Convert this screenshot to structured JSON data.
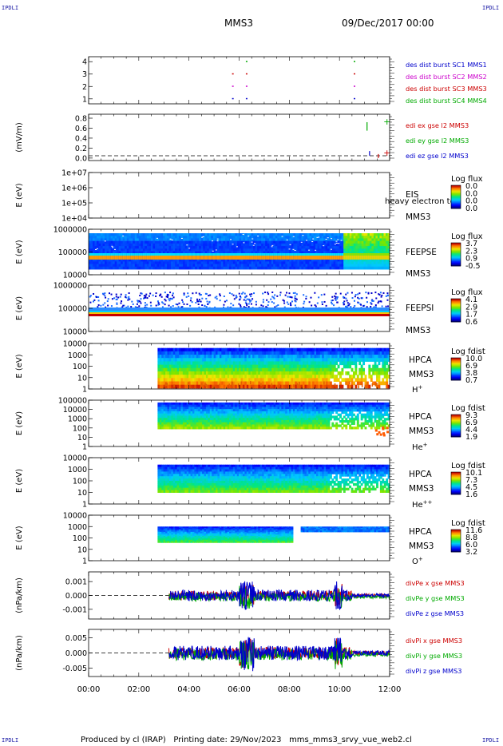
{
  "header": {
    "corner_label": "IPDLI",
    "spacecraft": "MMS3",
    "date_time": "09/Dec/2017 00:00"
  },
  "footer": {
    "produced_by": "Produced by cl (IRAP)",
    "printing_date": "Printing date: 29/Nov/2023",
    "script_name": "mms_mms3_srvy_vue_web2.cl"
  },
  "chart_data": {
    "type": "spectrogram-stack",
    "x_axis": {
      "range": [
        "00:00",
        "12:00"
      ],
      "ticks": [
        "00:00",
        "02:00",
        "04:00",
        "06:00",
        "08:00",
        "10:00",
        "12:00"
      ]
    },
    "panels": [
      {
        "id": "des-burst",
        "type": "scatter",
        "ylabel": "",
        "yticks": [
          "1",
          "2",
          "3",
          "4"
        ],
        "ylim": [
          0.6,
          4.4
        ],
        "legend": [
          {
            "text": "des dist burst SC1 MMS1",
            "color": "#0000cc"
          },
          {
            "text": "des dist burst SC2 MMS2",
            "color": "#cc00cc"
          },
          {
            "text": "des dist burst SC3 MMS3",
            "color": "#cc0000"
          },
          {
            "text": "des dist burst SC4 MMS4",
            "color": "#00aa00"
          }
        ],
        "points": [
          {
            "x": 5.75,
            "y": 1,
            "s": 0
          },
          {
            "x": 6.3,
            "y": 1,
            "s": 0
          },
          {
            "x": 10.6,
            "y": 1,
            "s": 0
          },
          {
            "x": 5.75,
            "y": 2,
            "s": 1
          },
          {
            "x": 6.3,
            "y": 2,
            "s": 1
          },
          {
            "x": 10.6,
            "y": 2,
            "s": 1
          },
          {
            "x": 5.75,
            "y": 3,
            "s": 2
          },
          {
            "x": 6.3,
            "y": 3,
            "s": 2
          },
          {
            "x": 10.6,
            "y": 3,
            "s": 2
          },
          {
            "x": 6.3,
            "y": 4,
            "s": 3
          },
          {
            "x": 10.6,
            "y": 4,
            "s": 3
          }
        ]
      },
      {
        "id": "edi",
        "type": "line",
        "ylabel": "(mV/m)",
        "yticks": [
          "0.0",
          "0.2",
          "0.4",
          "0.6",
          "0.8"
        ],
        "ylim": [
          -0.05,
          0.88
        ],
        "legend": [
          {
            "text": "edi ex gse l2 MMS3",
            "color": "#cc0000"
          },
          {
            "text": "edi ey gse l2 MMS3",
            "color": "#00aa00"
          },
          {
            "text": "edi ez gse l2 MMS3",
            "color": "#0000cc"
          }
        ],
        "series": [
          {
            "name": "ex",
            "x": [
              11.55,
              11.55
            ],
            "y": [
              0.0,
              0.08
            ]
          },
          {
            "name": "ey",
            "x": [
              11.1,
              11.1,
              11.1,
              11.1
            ],
            "y": [
              0.55,
              0.72,
              0.62,
              0.7
            ]
          },
          {
            "name": "ez",
            "x": [
              11.2,
              11.2
            ],
            "y": [
              0.05,
              0.14
            ]
          }
        ]
      },
      {
        "id": "eis",
        "type": "heatmap",
        "ylabel": "E (eV)",
        "yticks": [
          "1e+04",
          "1e+05",
          "1e+06",
          "1e+07"
        ],
        "label_lines": [
          "EIS",
          "heavy electron to",
          "MMS3"
        ],
        "colorbar": {
          "title": "Log flux",
          "ticks": [
            "0.0",
            "0.0",
            "0.0",
            "0.0"
          ]
        }
      },
      {
        "id": "feeps-e",
        "type": "heatmap",
        "ylabel": "E (eV)",
        "yticks": [
          "10000",
          "100000",
          "1000000"
        ],
        "label_lines": [
          "FEEPSE",
          "MMS3"
        ],
        "colorbar": {
          "title": "Log flux",
          "ticks": [
            "3.7",
            "2.3",
            "0.9",
            "-0.5"
          ]
        }
      },
      {
        "id": "feeps-i",
        "type": "heatmap",
        "ylabel": "E (eV)",
        "yticks": [
          "10000",
          "100000",
          "1000000"
        ],
        "label_lines": [
          "FEEPSI",
          "MMS3"
        ],
        "colorbar": {
          "title": "Log flux",
          "ticks": [
            "4.1",
            "2.9",
            "1.7",
            "0.6"
          ]
        }
      },
      {
        "id": "hpca-h",
        "type": "heatmap",
        "ylabel": "E (eV)",
        "yticks": [
          "1",
          "10",
          "100",
          "1000",
          "10000"
        ],
        "label_lines": [
          "HPCA",
          "MMS3"
        ],
        "species": {
          "base": "H",
          "sup": "+"
        },
        "colorbar": {
          "title": "Log fdist",
          "ticks": [
            "10.0",
            "6.9",
            "3.8",
            "0.7"
          ]
        }
      },
      {
        "id": "hpca-he1",
        "type": "heatmap",
        "ylabel": "E (eV)",
        "yticks": [
          "1",
          "10",
          "100",
          "1000",
          "10000",
          "100000"
        ],
        "label_lines": [
          "HPCA",
          "MMS3"
        ],
        "species": {
          "base": "He",
          "sup": "+"
        },
        "colorbar": {
          "title": "Log fdist",
          "ticks": [
            "9.3",
            "6.9",
            "4.4",
            "1.9"
          ]
        }
      },
      {
        "id": "hpca-he2",
        "type": "heatmap",
        "ylabel": "E (eV)",
        "yticks": [
          "1",
          "10",
          "100",
          "1000",
          "10000"
        ],
        "label_lines": [
          "HPCA",
          "MMS3"
        ],
        "species": {
          "base": "He",
          "sup": "++"
        },
        "colorbar": {
          "title": "Log fdist",
          "ticks": [
            "10.1",
            "7.3",
            "4.5",
            "1.6"
          ]
        }
      },
      {
        "id": "hpca-o",
        "type": "heatmap",
        "ylabel": "E (eV)",
        "yticks": [
          "1",
          "10",
          "100",
          "1000",
          "10000"
        ],
        "label_lines": [
          "HPCA",
          "MMS3"
        ],
        "species": {
          "base": "O",
          "sup": "+"
        },
        "colorbar": {
          "title": "Log fdist",
          "ticks": [
            "11.6",
            "8.8",
            "6.0",
            "3.2"
          ]
        }
      },
      {
        "id": "divpe",
        "type": "line",
        "ylabel": "(nPa/km)",
        "yticks": [
          "-0.001",
          "0.000",
          "0.001"
        ],
        "ylim": [
          -0.0017,
          0.0017
        ],
        "legend": [
          {
            "text": "divPe x gse MMS3",
            "color": "#cc0000"
          },
          {
            "text": "divPe y gse MMS3",
            "color": "#00aa00"
          },
          {
            "text": "divPe z gse MMS3",
            "color": "#0000cc"
          }
        ]
      },
      {
        "id": "divpi",
        "type": "line",
        "ylabel": "(nPa/km)",
        "yticks": [
          "-0.005",
          "0.000",
          "0.005"
        ],
        "ylim": [
          -0.0078,
          0.0078
        ],
        "legend": [
          {
            "text": "divPi x gse MMS3",
            "color": "#cc0000"
          },
          {
            "text": "divPi y gse MMS3",
            "color": "#00aa00"
          },
          {
            "text": "divPi z gse MMS3",
            "color": "#0000cc"
          }
        ]
      }
    ]
  }
}
